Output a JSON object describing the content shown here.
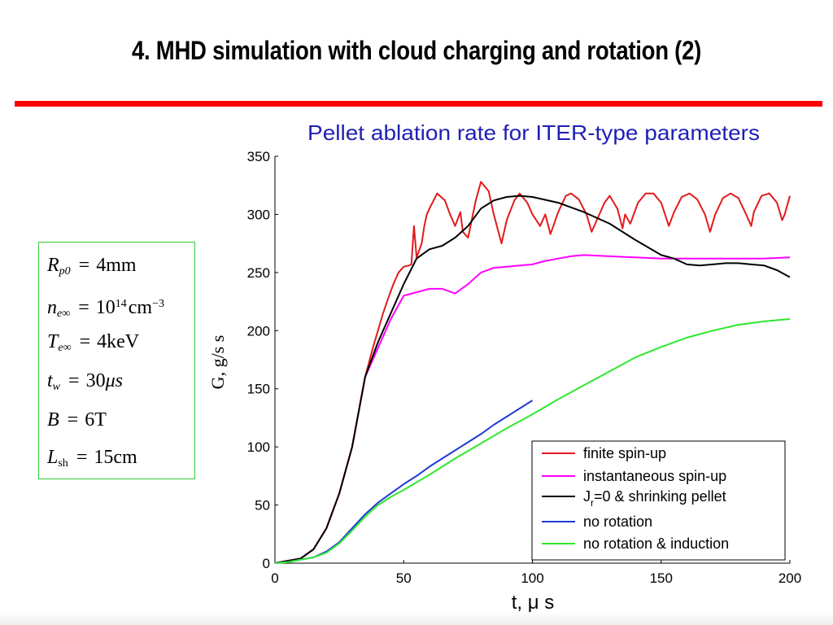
{
  "slide": {
    "title": "4. MHD simulation with cloud charging and rotation (2)"
  },
  "parameters": [
    {
      "sym": "R",
      "sub": "p0",
      "val": "4mm"
    },
    {
      "sym": "n",
      "sub": "e∞",
      "val": "10",
      "sup": "14",
      "unit": "cm",
      "unit_sup": "−3"
    },
    {
      "sym": "T",
      "sub": "e∞",
      "val": "4keV"
    },
    {
      "sym": "t",
      "sub": "w",
      "val": "30",
      "unit_italic": "μs"
    },
    {
      "sym": "B",
      "sub": "",
      "val": "6T"
    },
    {
      "sym": "L",
      "sub": "sh",
      "val": "15cm"
    }
  ],
  "chart_data": {
    "type": "line",
    "title": "Pellet ablation rate for ITER-type parameters",
    "title_color": "#1f1fb4",
    "xlabel": "t, μ s",
    "ylabel": "G, g/s s",
    "xlim": [
      0,
      200
    ],
    "ylim": [
      0,
      350
    ],
    "xticks": [
      0,
      50,
      100,
      150,
      200
    ],
    "yticks": [
      0,
      50,
      100,
      150,
      200,
      250,
      300,
      350
    ],
    "grid": false,
    "legend_position": "bottom-right",
    "series": [
      {
        "name": "finite spin-up",
        "color": "#e31a1c",
        "points": [
          [
            0,
            0
          ],
          [
            5,
            2
          ],
          [
            10,
            4
          ],
          [
            15,
            12
          ],
          [
            20,
            30
          ],
          [
            25,
            60
          ],
          [
            30,
            100
          ],
          [
            35,
            160
          ],
          [
            38,
            185
          ],
          [
            40,
            200
          ],
          [
            42,
            215
          ],
          [
            44,
            228
          ],
          [
            46,
            240
          ],
          [
            48,
            250
          ],
          [
            50,
            255
          ],
          [
            52,
            256
          ],
          [
            53,
            257
          ],
          [
            54,
            290
          ],
          [
            55,
            263
          ],
          [
            57,
            275
          ],
          [
            58,
            290
          ],
          [
            59,
            300
          ],
          [
            60,
            305
          ],
          [
            63,
            318
          ],
          [
            66,
            312
          ],
          [
            68,
            300
          ],
          [
            70,
            290
          ],
          [
            72,
            302
          ],
          [
            73,
            285
          ],
          [
            75,
            280
          ],
          [
            78,
            312
          ],
          [
            80,
            328
          ],
          [
            83,
            320
          ],
          [
            85,
            300
          ],
          [
            88,
            275
          ],
          [
            90,
            295
          ],
          [
            93,
            312
          ],
          [
            95,
            318
          ],
          [
            98,
            310
          ],
          [
            100,
            300
          ],
          [
            103,
            290
          ],
          [
            105,
            300
          ],
          [
            107,
            283
          ],
          [
            110,
            302
          ],
          [
            113,
            316
          ],
          [
            115,
            318
          ],
          [
            118,
            313
          ],
          [
            121,
            300
          ],
          [
            123,
            285
          ],
          [
            125,
            295
          ],
          [
            128,
            310
          ],
          [
            130,
            316
          ],
          [
            133,
            305
          ],
          [
            135,
            288
          ],
          [
            136,
            300
          ],
          [
            138,
            292
          ],
          [
            141,
            310
          ],
          [
            144,
            318
          ],
          [
            147,
            318
          ],
          [
            150,
            310
          ],
          [
            153,
            290
          ],
          [
            155,
            302
          ],
          [
            158,
            315
          ],
          [
            161,
            318
          ],
          [
            164,
            313
          ],
          [
            167,
            300
          ],
          [
            169,
            285
          ],
          [
            171,
            300
          ],
          [
            174,
            314
          ],
          [
            177,
            318
          ],
          [
            180,
            314
          ],
          [
            183,
            300
          ],
          [
            185,
            290
          ],
          [
            186,
            302
          ],
          [
            189,
            316
          ],
          [
            192,
            318
          ],
          [
            195,
            310
          ],
          [
            197,
            295
          ],
          [
            198,
            300
          ],
          [
            200,
            316
          ]
        ]
      },
      {
        "name": "instantaneous spin-up",
        "color": "#ff00ff",
        "points": [
          [
            0,
            0
          ],
          [
            5,
            2
          ],
          [
            10,
            4
          ],
          [
            15,
            12
          ],
          [
            20,
            30
          ],
          [
            25,
            60
          ],
          [
            30,
            100
          ],
          [
            35,
            160
          ],
          [
            40,
            185
          ],
          [
            45,
            210
          ],
          [
            50,
            230
          ],
          [
            55,
            233
          ],
          [
            60,
            236
          ],
          [
            65,
            236
          ],
          [
            70,
            232
          ],
          [
            75,
            240
          ],
          [
            80,
            250
          ],
          [
            85,
            254
          ],
          [
            90,
            255
          ],
          [
            95,
            256
          ],
          [
            100,
            257
          ],
          [
            105,
            260
          ],
          [
            110,
            262
          ],
          [
            115,
            264
          ],
          [
            120,
            265
          ],
          [
            130,
            264
          ],
          [
            140,
            263
          ],
          [
            150,
            262
          ],
          [
            160,
            262
          ],
          [
            170,
            262
          ],
          [
            180,
            262
          ],
          [
            190,
            262
          ],
          [
            200,
            263
          ]
        ]
      },
      {
        "name": "J_r=0 & shrinking pellet",
        "color": "#000000",
        "points": [
          [
            0,
            0
          ],
          [
            5,
            2
          ],
          [
            10,
            4
          ],
          [
            15,
            12
          ],
          [
            20,
            30
          ],
          [
            25,
            60
          ],
          [
            30,
            100
          ],
          [
            35,
            160
          ],
          [
            40,
            190
          ],
          [
            45,
            215
          ],
          [
            50,
            240
          ],
          [
            55,
            262
          ],
          [
            60,
            270
          ],
          [
            65,
            273
          ],
          [
            70,
            280
          ],
          [
            75,
            290
          ],
          [
            80,
            305
          ],
          [
            85,
            312
          ],
          [
            90,
            315
          ],
          [
            95,
            316
          ],
          [
            100,
            315
          ],
          [
            110,
            310
          ],
          [
            120,
            302
          ],
          [
            130,
            292
          ],
          [
            140,
            278
          ],
          [
            150,
            265
          ],
          [
            155,
            262
          ],
          [
            160,
            257
          ],
          [
            165,
            256
          ],
          [
            170,
            257
          ],
          [
            175,
            258
          ],
          [
            180,
            258
          ],
          [
            185,
            257
          ],
          [
            190,
            256
          ],
          [
            195,
            252
          ],
          [
            200,
            246
          ]
        ]
      },
      {
        "name": "no rotation",
        "color": "#1f3bd6",
        "points": [
          [
            0,
            0
          ],
          [
            5,
            1
          ],
          [
            10,
            3
          ],
          [
            15,
            5
          ],
          [
            20,
            10
          ],
          [
            25,
            18
          ],
          [
            30,
            30
          ],
          [
            35,
            42
          ],
          [
            40,
            52
          ],
          [
            45,
            60
          ],
          [
            50,
            68
          ],
          [
            55,
            75
          ],
          [
            60,
            83
          ],
          [
            65,
            90
          ],
          [
            70,
            97
          ],
          [
            75,
            104
          ],
          [
            80,
            111
          ],
          [
            85,
            119
          ],
          [
            90,
            126
          ],
          [
            95,
            133
          ],
          [
            100,
            140
          ]
        ]
      },
      {
        "name": "no rotation & induction",
        "color": "#2ee82e",
        "points": [
          [
            0,
            0
          ],
          [
            5,
            1
          ],
          [
            10,
            3
          ],
          [
            15,
            5
          ],
          [
            20,
            9
          ],
          [
            25,
            17
          ],
          [
            30,
            28
          ],
          [
            35,
            40
          ],
          [
            40,
            50
          ],
          [
            45,
            57
          ],
          [
            50,
            63
          ],
          [
            60,
            76
          ],
          [
            70,
            90
          ],
          [
            80,
            103
          ],
          [
            90,
            116
          ],
          [
            100,
            128
          ],
          [
            110,
            141
          ],
          [
            120,
            153
          ],
          [
            130,
            165
          ],
          [
            140,
            177
          ],
          [
            150,
            186
          ],
          [
            160,
            194
          ],
          [
            170,
            200
          ],
          [
            180,
            205
          ],
          [
            190,
            208
          ],
          [
            200,
            210
          ]
        ]
      }
    ]
  }
}
